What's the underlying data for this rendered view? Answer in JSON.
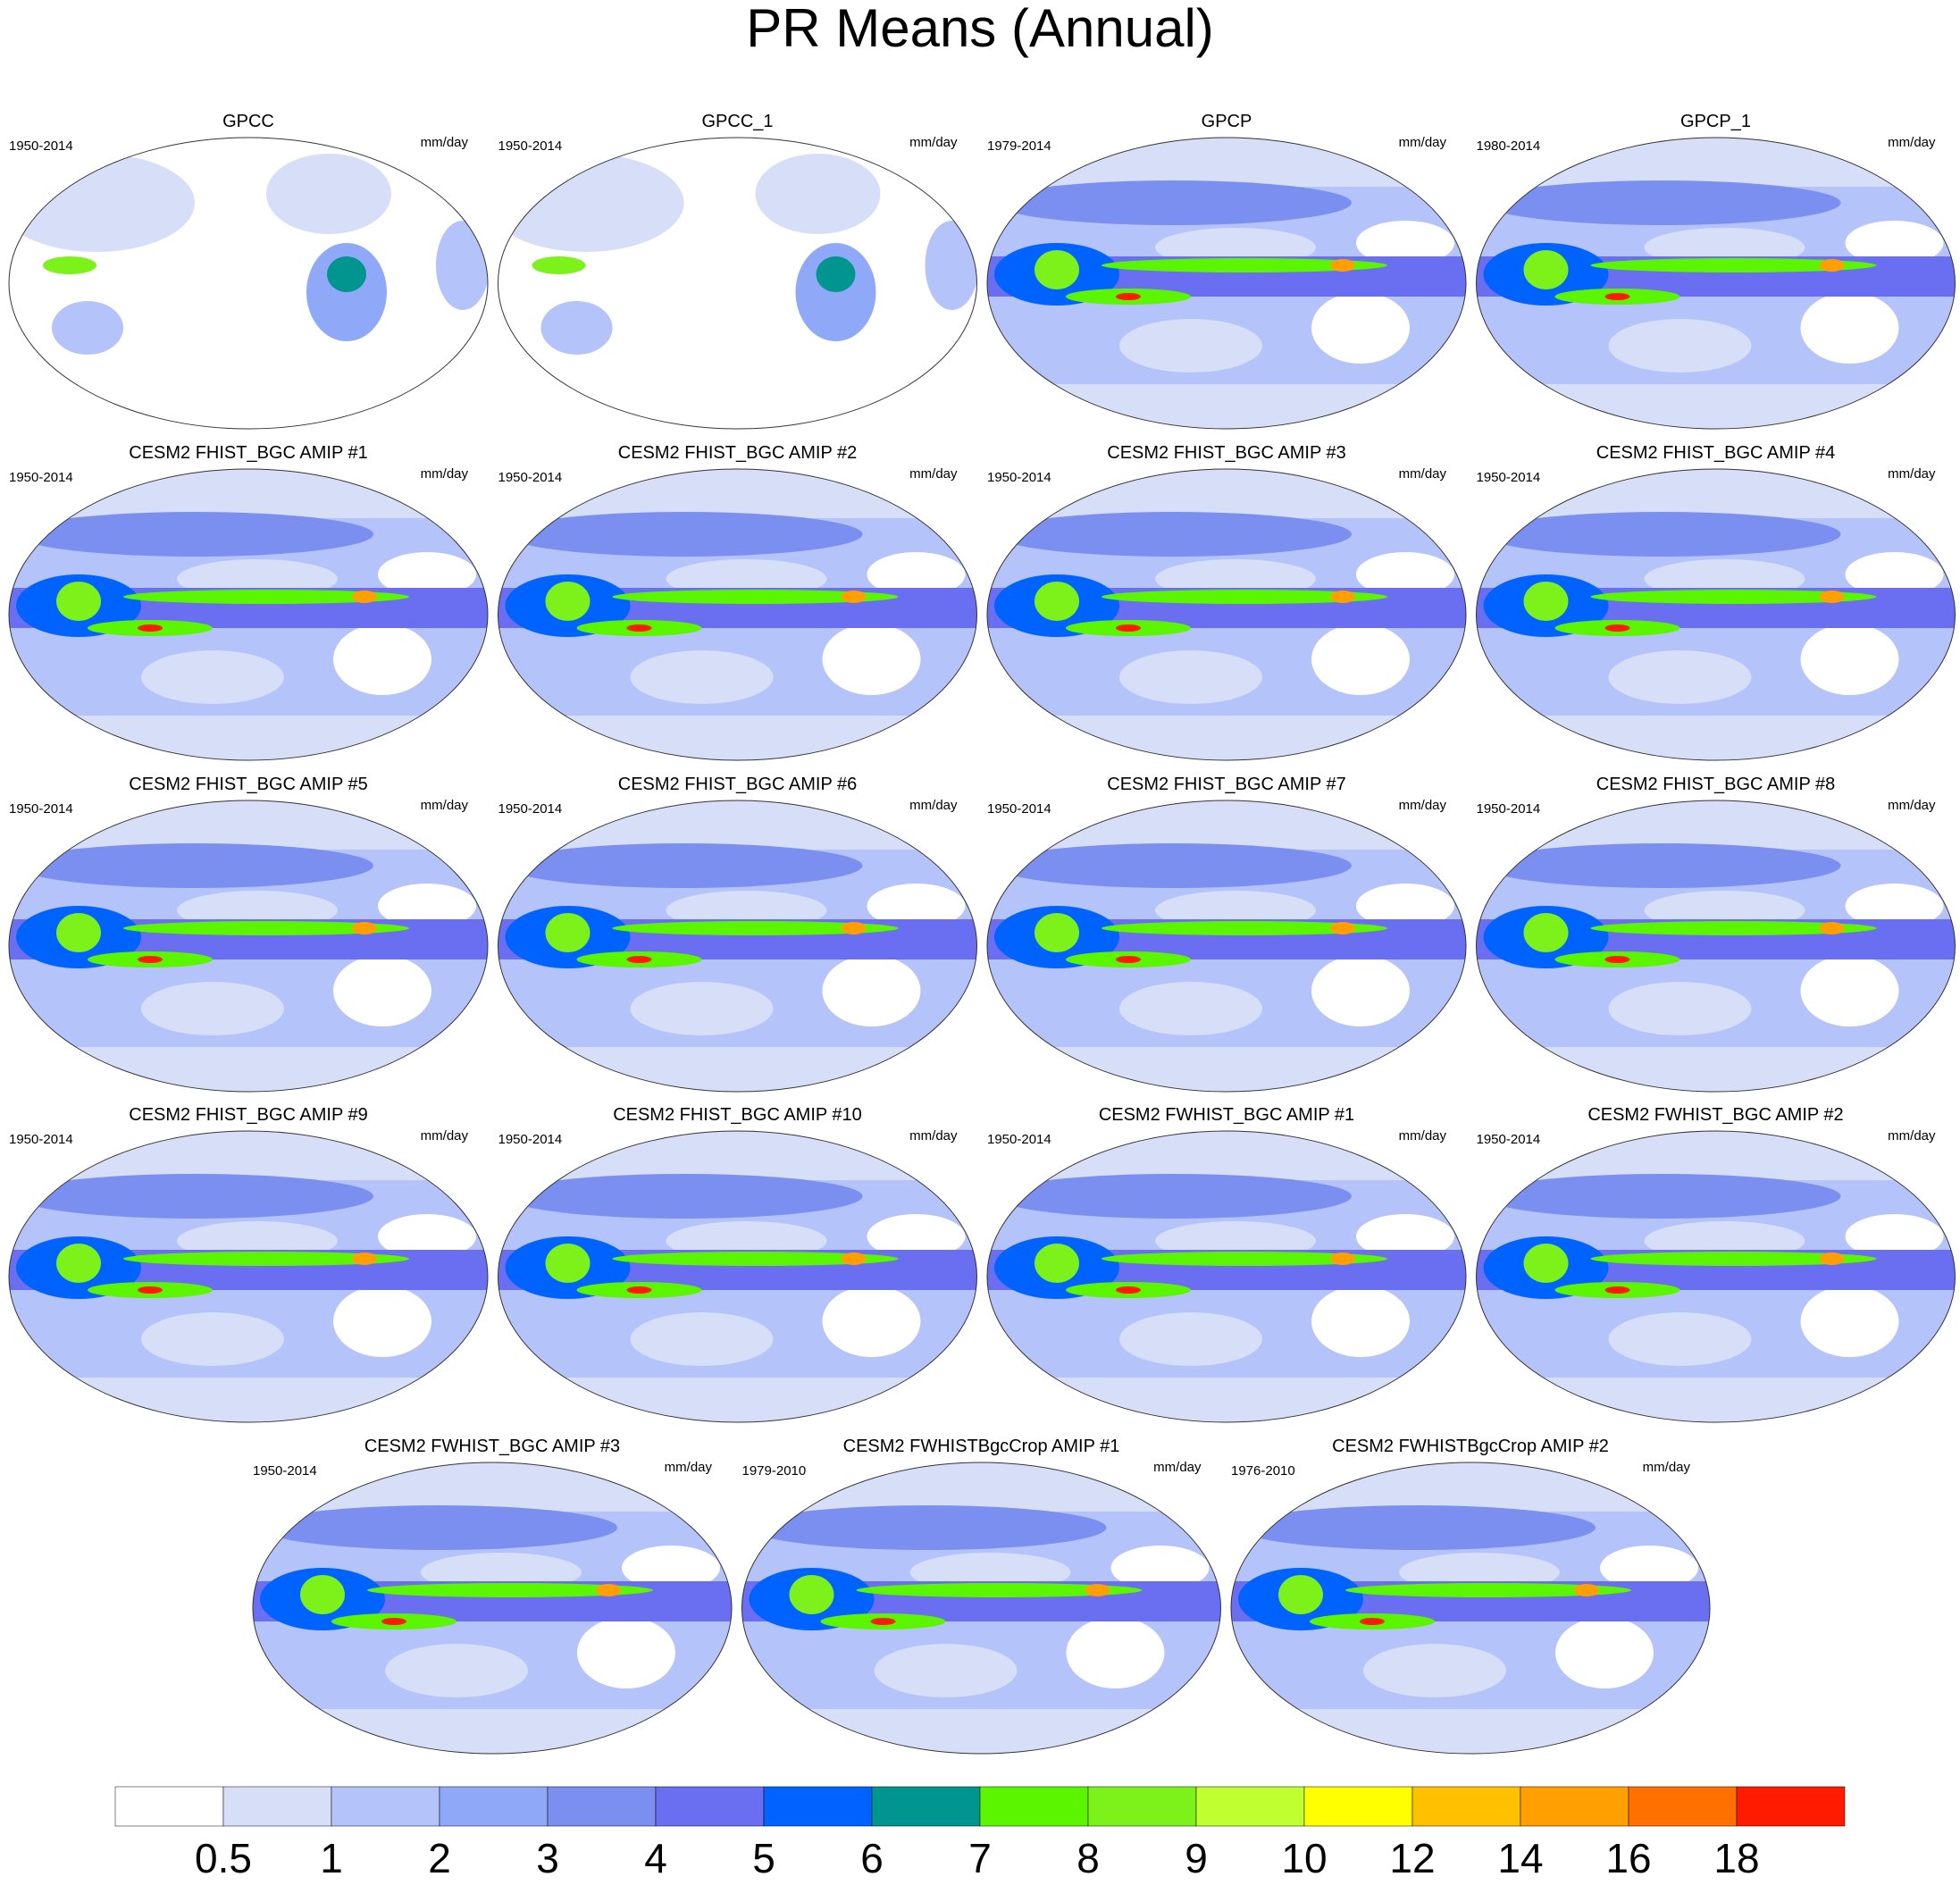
{
  "title": "PR Means (Annual)",
  "panels": [
    {
      "title": "GPCC",
      "period": "1950-2014",
      "units": "mm/day"
    },
    {
      "title": "GPCC_1",
      "period": "1950-2014",
      "units": "mm/day"
    },
    {
      "title": "GPCP",
      "period": "1979-2014",
      "units": "mm/day"
    },
    {
      "title": "GPCP_1",
      "period": "1980-2014",
      "units": "mm/day"
    },
    {
      "title": "CESM2 FHIST_BGC AMIP #1",
      "period": "1950-2014",
      "units": "mm/day"
    },
    {
      "title": "CESM2 FHIST_BGC AMIP #2",
      "period": "1950-2014",
      "units": "mm/day"
    },
    {
      "title": "CESM2 FHIST_BGC AMIP #3",
      "period": "1950-2014",
      "units": "mm/day"
    },
    {
      "title": "CESM2 FHIST_BGC AMIP #4",
      "period": "1950-2014",
      "units": "mm/day"
    },
    {
      "title": "CESM2 FHIST_BGC AMIP #5",
      "period": "1950-2014",
      "units": "mm/day"
    },
    {
      "title": "CESM2 FHIST_BGC AMIP #6",
      "period": "1950-2014",
      "units": "mm/day"
    },
    {
      "title": "CESM2 FHIST_BGC AMIP #7",
      "period": "1950-2014",
      "units": "mm/day"
    },
    {
      "title": "CESM2 FHIST_BGC AMIP #8",
      "period": "1950-2014",
      "units": "mm/day"
    },
    {
      "title": "CESM2 FHIST_BGC AMIP #9",
      "period": "1950-2014",
      "units": "mm/day"
    },
    {
      "title": "CESM2 FHIST_BGC AMIP #10",
      "period": "1950-2014",
      "units": "mm/day"
    },
    {
      "title": "CESM2 FWHIST_BGC AMIP #1",
      "period": "1950-2014",
      "units": "mm/day"
    },
    {
      "title": "CESM2 FWHIST_BGC AMIP #2",
      "period": "1950-2014",
      "units": "mm/day"
    },
    {
      "title": "CESM2 FWHIST_BGC AMIP #3",
      "period": "1950-2014",
      "units": "mm/day"
    },
    {
      "title": "CESM2 FWHISTBgcCrop AMIP #1",
      "period": "1979-2010",
      "units": "mm/day"
    },
    {
      "title": "CESM2 FWHISTBgcCrop AMIP #2",
      "period": "1976-2010",
      "units": "mm/day"
    }
  ],
  "colorbar": {
    "levels": [
      0.5,
      1,
      2,
      3,
      4,
      5,
      6,
      7,
      8,
      9,
      10,
      12,
      14,
      16,
      18
    ],
    "colors": [
      "#ffffff",
      "#d7def8",
      "#b4c3f9",
      "#8fa9f8",
      "#7b8ff0",
      "#6a6ef1",
      "#0063ff",
      "#00968f",
      "#5cf500",
      "#7cf21a",
      "#c0ff30",
      "#ffff00",
      "#ffc000",
      "#ffa000",
      "#ff7000",
      "#ff1a00"
    ]
  }
}
